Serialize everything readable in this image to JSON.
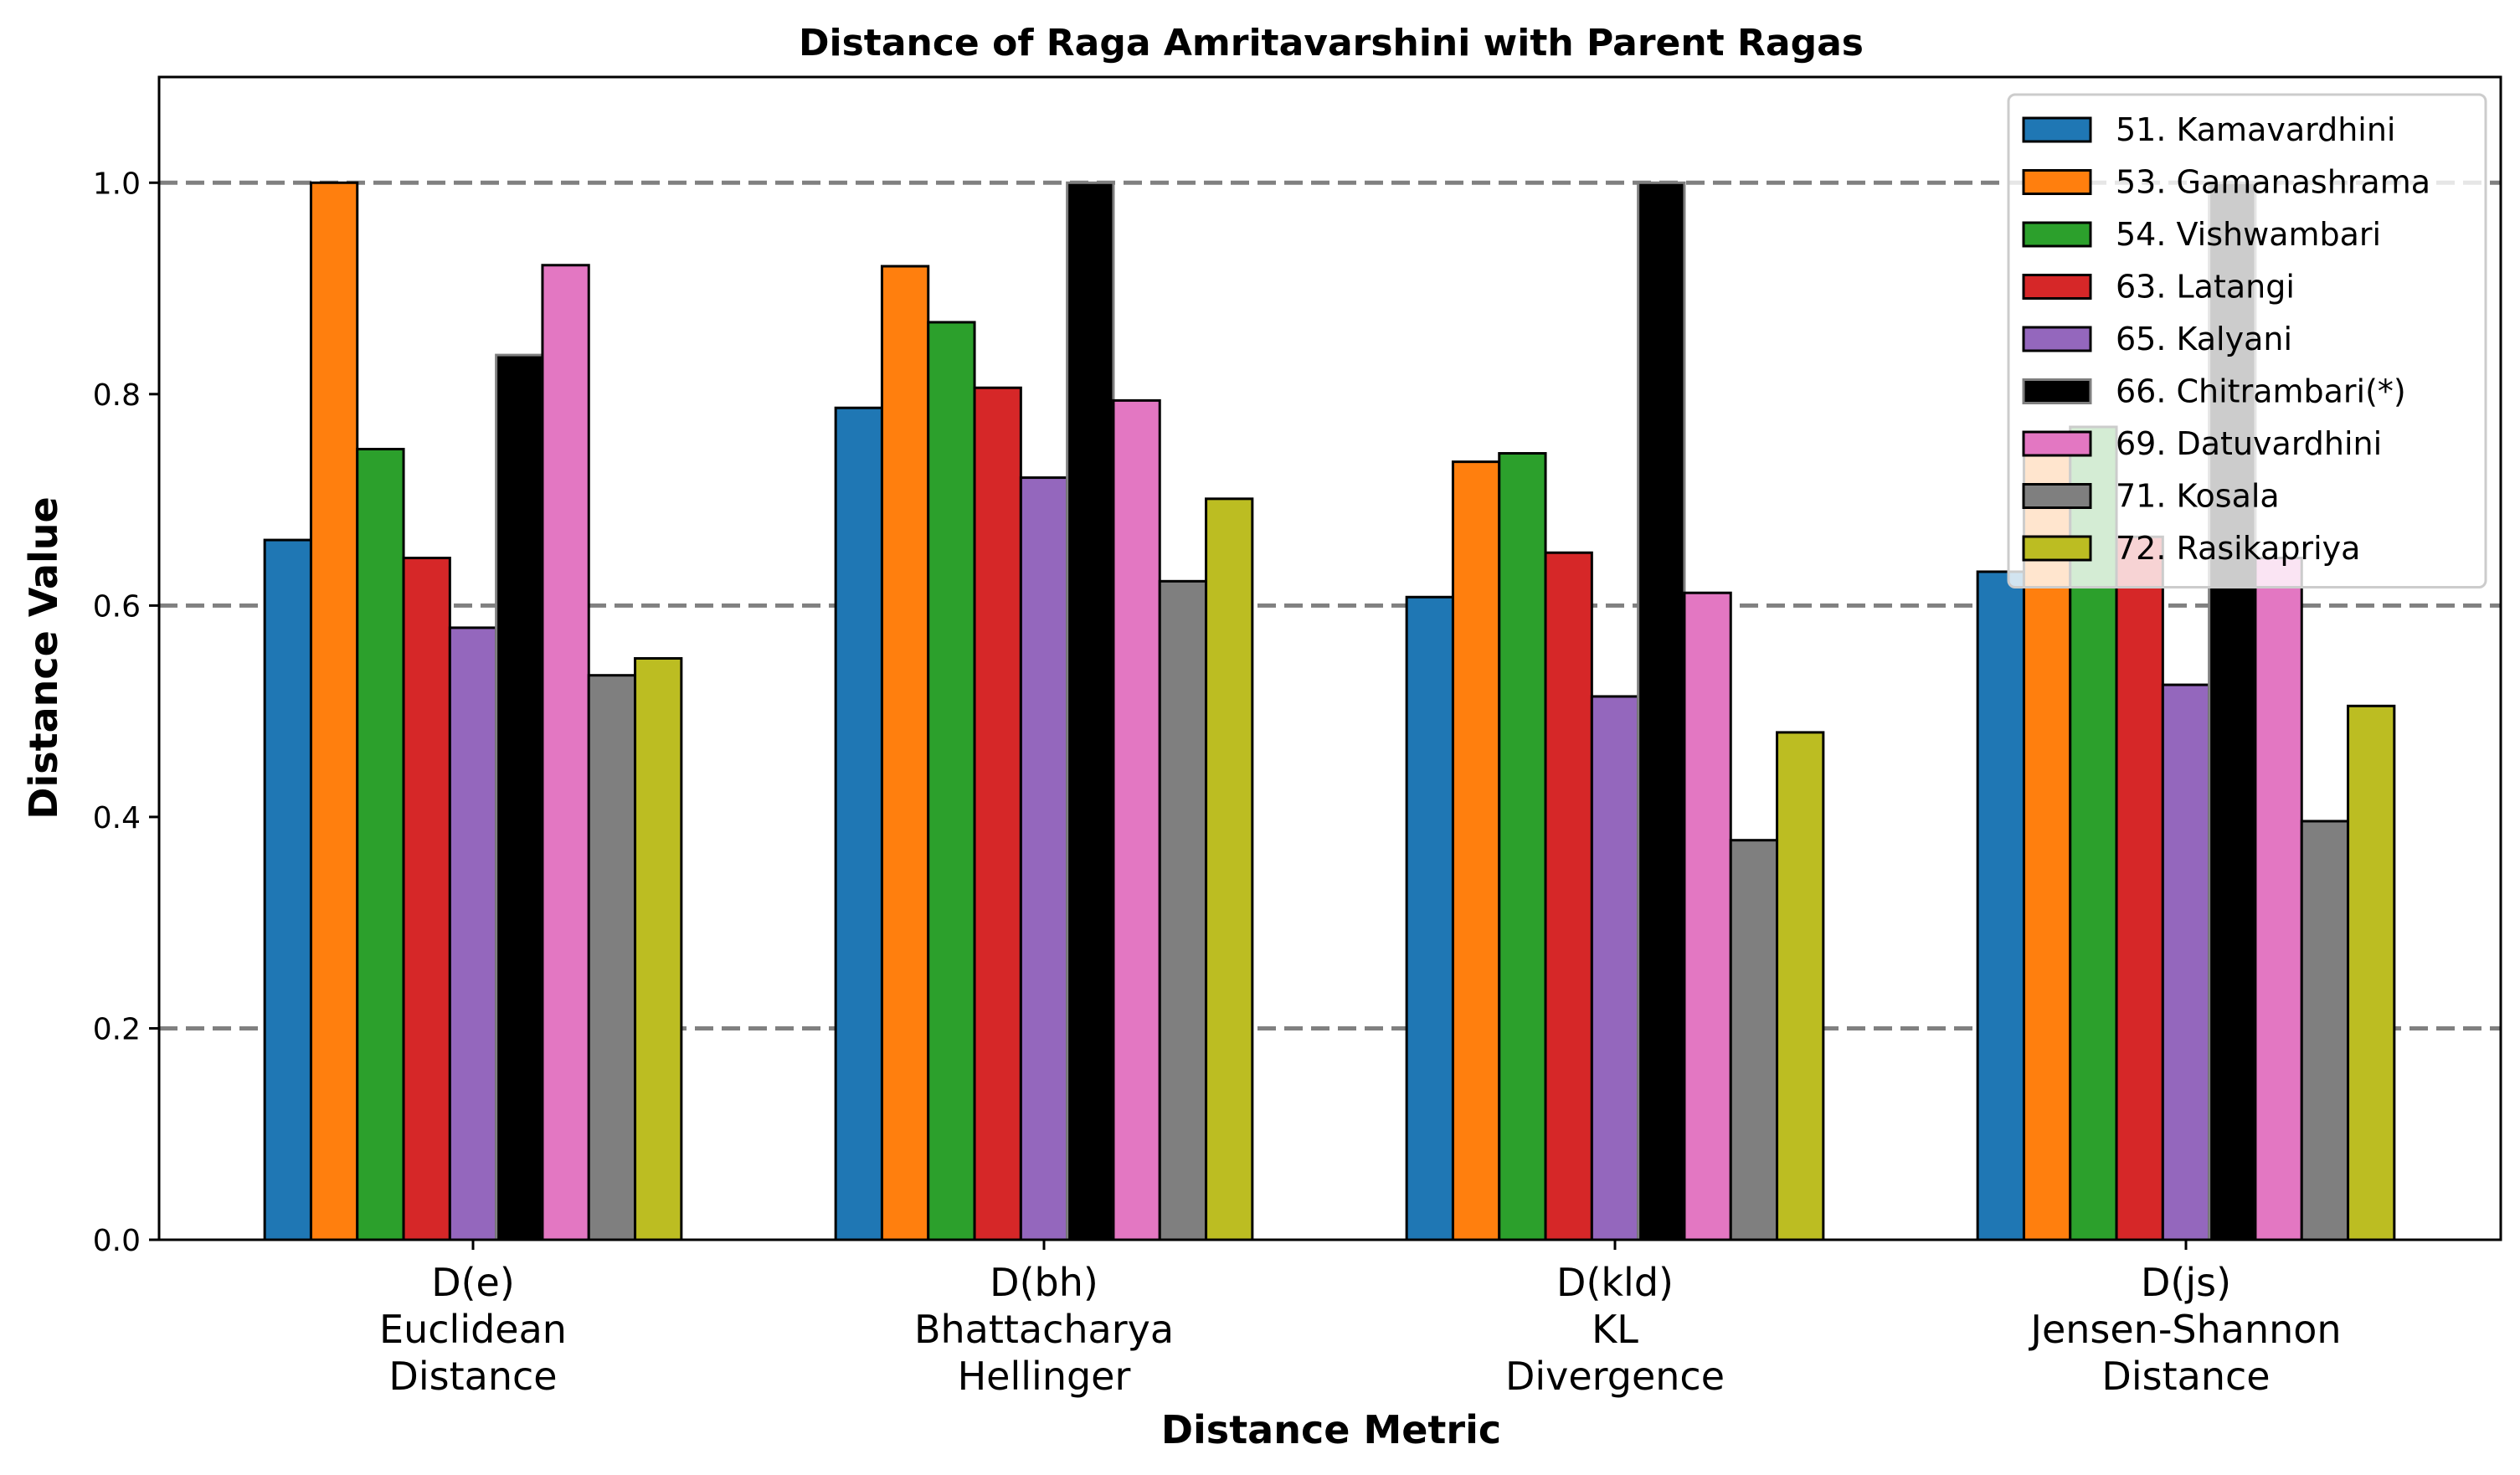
{
  "chart_data": {
    "type": "bar",
    "title": "Distance of Raga Amritavarshini with Parent Ragas",
    "xlabel": "Distance Metric",
    "ylabel": "Distance Value",
    "ylim": [
      0,
      1.1
    ],
    "yticks": [
      "0.0",
      "0.2",
      "0.4",
      "0.6",
      "0.8",
      "1.0"
    ],
    "grid": "horizontal dashed at 0.2, 0.6, 1.0",
    "legend_position": "top-right",
    "categories": [
      [
        "D(e)",
        "Euclidean",
        "Distance"
      ],
      [
        "D(bh)",
        "Bhattacharya",
        "Hellinger"
      ],
      [
        "D(kld)",
        "KL",
        "Divergence"
      ],
      [
        "D(js)",
        "Jensen-Shannon",
        "Distance"
      ]
    ],
    "series": [
      {
        "name": "51. Kamavardhini",
        "color": "#1f77b4",
        "values": [
          0.662,
          0.787,
          0.608,
          0.632
        ]
      },
      {
        "name": "53. Gamanashrama",
        "color": "#ff7f0e",
        "values": [
          1.0,
          0.921,
          0.736,
          0.757
        ]
      },
      {
        "name": "54. Vishwambari",
        "color": "#2ca02c",
        "values": [
          0.748,
          0.868,
          0.744,
          0.769
        ]
      },
      {
        "name": "63. Latangi",
        "color": "#d62728",
        "values": [
          0.645,
          0.806,
          0.65,
          0.665
        ]
      },
      {
        "name": "65. Kalyani",
        "color": "#9467bd",
        "values": [
          0.579,
          0.721,
          0.514,
          0.525
        ]
      },
      {
        "name": "66. Chitrambari(*)",
        "color": "#000000",
        "edge": "#7f7f7f",
        "values": [
          0.837,
          1.0,
          1.0,
          1.0
        ]
      },
      {
        "name": "69. Datuvardhini",
        "color": "#e377c2",
        "values": [
          0.922,
          0.794,
          0.612,
          0.645
        ]
      },
      {
        "name": "71. Kosala",
        "color": "#7f7f7f",
        "values": [
          0.534,
          0.623,
          0.378,
          0.396
        ]
      },
      {
        "name": "72. Rasikapriya",
        "color": "#bcbd22",
        "values": [
          0.55,
          0.701,
          0.48,
          0.505
        ]
      }
    ]
  }
}
